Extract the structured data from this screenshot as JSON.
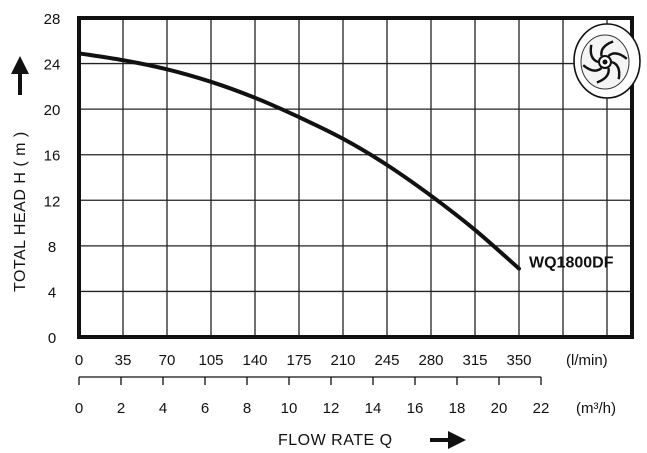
{
  "chart_data": {
    "type": "line",
    "ylabel": "TOTAL HEAD  H ( m )",
    "xlabel": "FLOW  RATE  Q",
    "ylim": [
      0,
      28
    ],
    "yticks": [
      "0",
      "4",
      "8",
      "12",
      "16",
      "20",
      "24",
      "28"
    ],
    "x_primary": {
      "unit": "(l/min)",
      "range": [
        0,
        350
      ],
      "ticks": [
        "0",
        "35",
        "70",
        "105",
        "140",
        "175",
        "210",
        "245",
        "280",
        "315",
        "350"
      ]
    },
    "x_secondary": {
      "unit": "(m³/h)",
      "range": [
        0,
        22
      ],
      "ticks": [
        "0",
        "2",
        "4",
        "6",
        "8",
        "10",
        "12",
        "14",
        "16",
        "18",
        "20",
        "22"
      ]
    },
    "grid": true,
    "series": [
      {
        "name": "WQ1800DF",
        "x": [
          0,
          35,
          70,
          105,
          140,
          175,
          210,
          245,
          280,
          315,
          350
        ],
        "y": [
          24.9,
          24.3,
          23.5,
          22.4,
          21.0,
          19.3,
          17.4,
          15.1,
          12.4,
          9.4,
          6.0
        ]
      }
    ],
    "icon": "impeller-icon"
  }
}
